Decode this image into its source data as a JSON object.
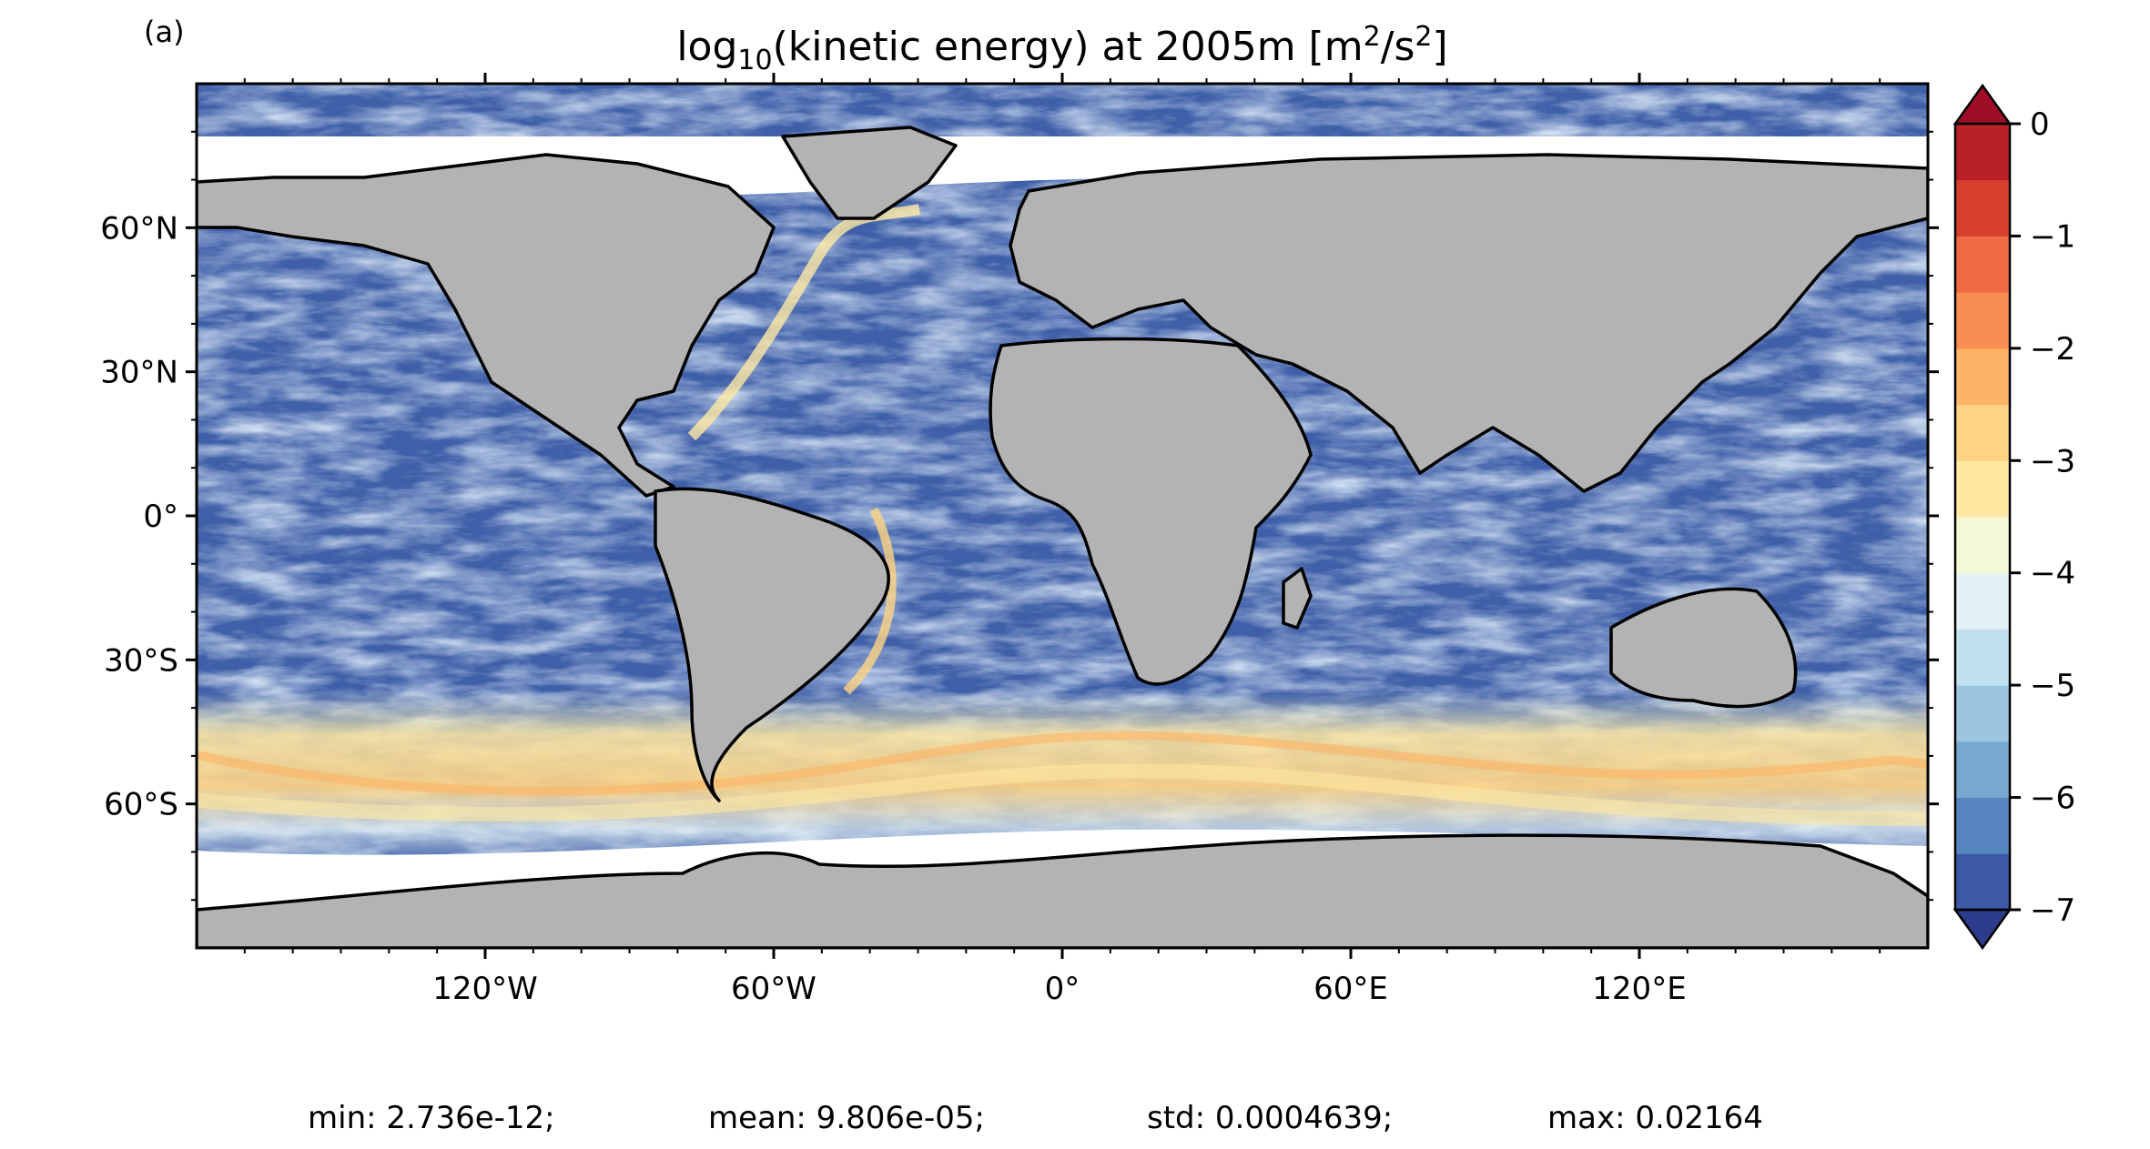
{
  "panel_label": "(a)",
  "title": {
    "prefix": "log",
    "sub": "10",
    "middle": "(kinetic energy) at 2005m [m",
    "sup1": "2",
    "slash": "/s",
    "sup2": "2",
    "suffix": "]"
  },
  "map": {
    "lon_range": [
      -180,
      180
    ],
    "lat_range": [
      -90,
      90
    ],
    "lat_ticks": [
      {
        "value": 60,
        "label": "60°N"
      },
      {
        "value": 30,
        "label": "30°N"
      },
      {
        "value": 0,
        "label": "0°"
      },
      {
        "value": -30,
        "label": "30°S"
      },
      {
        "value": -60,
        "label": "60°S"
      }
    ],
    "lon_ticks": [
      {
        "value": -120,
        "label": "120°W"
      },
      {
        "value": -60,
        "label": "60°W"
      },
      {
        "value": 0,
        "label": "0°"
      },
      {
        "value": 60,
        "label": "60°E"
      },
      {
        "value": 120,
        "label": "120°E"
      }
    ],
    "land_color": "#b3b3b3",
    "ocean_base_color": "#3f5fa8"
  },
  "colorbar": {
    "min": -7,
    "max": 0,
    "extend": "both",
    "levels": [
      -7,
      -6.5,
      -6,
      -5.5,
      -5,
      -4.5,
      -4,
      -3.5,
      -3,
      -2.5,
      -2,
      -1.5,
      -1,
      -0.5,
      0
    ],
    "colors": [
      "#3c59a6",
      "#5685c0",
      "#78a7d0",
      "#9cc5e0",
      "#c1e0ee",
      "#e4f2f6",
      "#f5f8d6",
      "#fee8a2",
      "#fed383",
      "#fdb466",
      "#f98e52",
      "#ef6b44",
      "#d8402e",
      "#b92127"
    ],
    "under_color": "#2c3b8c",
    "over_color": "#a00d26",
    "tick_labels": [
      {
        "value": 0,
        "label": "0"
      },
      {
        "value": -1,
        "label": "−1"
      },
      {
        "value": -2,
        "label": "−2"
      },
      {
        "value": -3,
        "label": "−3"
      },
      {
        "value": -4,
        "label": "−4"
      },
      {
        "value": -5,
        "label": "−5"
      },
      {
        "value": -6,
        "label": "−6"
      },
      {
        "value": -7,
        "label": "−7"
      }
    ]
  },
  "stats": {
    "min": "min: 2.736e-12;",
    "mean": "mean: 9.806e-05;",
    "std": "std: 0.0004639;",
    "max": "max: 0.02164"
  }
}
